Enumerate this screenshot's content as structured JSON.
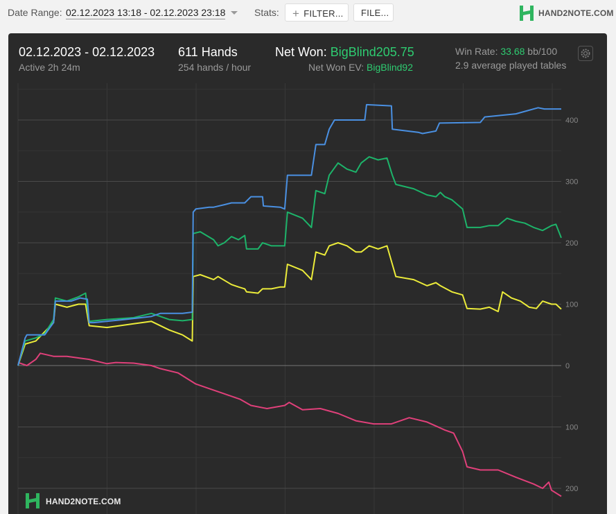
{
  "toolbar": {
    "date_range_label": "Date Range:",
    "date_range_value": "02.12.2023 13:18 - 02.12.2023 23:18",
    "stats_label": "Stats:",
    "filter_label": "FILTER...",
    "file_label": "FILE...",
    "brand": "HAND2NOTE.COM"
  },
  "summary": {
    "date": "02.12.2023 - 02.12.2023",
    "active": "Active 2h 24m",
    "hands": "611 Hands",
    "hands_per_hour": "254 hands / hour",
    "net_won_label": "Net Won:",
    "net_won_value": "BigBlind205.75",
    "net_won_ev_label": "Net Won  EV:",
    "net_won_ev_value": "BigBlind92",
    "win_rate_label": "Win Rate:",
    "win_rate_value": "33.68",
    "win_rate_unit": "bb/100",
    "avg_tables": "2.9 average played tables"
  },
  "watermark": "HAND2NOTE.COM",
  "colors": {
    "net_won": "#4a90e2",
    "showdown": "#1db46a",
    "net_won_ev": "#ecec3a",
    "non_showdown": "#e0407a",
    "accent": "#2ecc71"
  },
  "chart_data": {
    "type": "line",
    "xlim": [
      0,
      611
    ],
    "ylim": [
      -210,
      430
    ],
    "y_ticks": [
      400,
      300,
      200,
      100,
      0,
      -100,
      -200
    ],
    "y_tick_labels": [
      "400",
      "300",
      "200",
      "100",
      "0",
      "100",
      "200"
    ],
    "grid": true,
    "series": [
      {
        "key": "blue",
        "color": "#4a90e2",
        "points": [
          [
            0,
            0
          ],
          [
            8,
            45
          ],
          [
            10,
            50
          ],
          [
            30,
            50
          ],
          [
            40,
            70
          ],
          [
            42,
            105
          ],
          [
            60,
            105
          ],
          [
            70,
            110
          ],
          [
            78,
            108
          ],
          [
            80,
            70
          ],
          [
            85,
            70
          ],
          [
            120,
            75
          ],
          [
            150,
            80
          ],
          [
            160,
            85
          ],
          [
            185,
            85
          ],
          [
            196,
            87
          ],
          [
            197,
            250
          ],
          [
            200,
            255
          ],
          [
            215,
            258
          ],
          [
            220,
            258
          ],
          [
            232,
            262
          ],
          [
            240,
            265
          ],
          [
            255,
            265
          ],
          [
            262,
            275
          ],
          [
            275,
            275
          ],
          [
            276,
            260
          ],
          [
            295,
            258
          ],
          [
            300,
            255
          ],
          [
            303,
            310
          ],
          [
            330,
            310
          ],
          [
            335,
            360
          ],
          [
            345,
            360
          ],
          [
            350,
            385
          ],
          [
            356,
            400
          ],
          [
            390,
            400
          ],
          [
            392,
            425
          ],
          [
            420,
            423
          ],
          [
            421,
            385
          ],
          [
            450,
            380
          ],
          [
            455,
            378
          ],
          [
            470,
            382
          ],
          [
            474,
            395
          ],
          [
            520,
            396
          ],
          [
            525,
            405
          ],
          [
            560,
            410
          ],
          [
            585,
            420
          ],
          [
            592,
            418
          ],
          [
            611,
            418
          ]
        ]
      },
      {
        "key": "green",
        "color": "#1db46a",
        "points": [
          [
            0,
            0
          ],
          [
            8,
            40
          ],
          [
            20,
            45
          ],
          [
            30,
            52
          ],
          [
            40,
            75
          ],
          [
            42,
            110
          ],
          [
            55,
            105
          ],
          [
            68,
            112
          ],
          [
            76,
            118
          ],
          [
            80,
            72
          ],
          [
            100,
            75
          ],
          [
            130,
            78
          ],
          [
            150,
            85
          ],
          [
            170,
            75
          ],
          [
            185,
            73
          ],
          [
            196,
            75
          ],
          [
            197,
            215
          ],
          [
            205,
            218
          ],
          [
            220,
            205
          ],
          [
            225,
            195
          ],
          [
            232,
            200
          ],
          [
            240,
            210
          ],
          [
            248,
            205
          ],
          [
            255,
            212
          ],
          [
            257,
            190
          ],
          [
            270,
            190
          ],
          [
            275,
            200
          ],
          [
            285,
            195
          ],
          [
            295,
            195
          ],
          [
            300,
            195
          ],
          [
            303,
            250
          ],
          [
            320,
            240
          ],
          [
            330,
            225
          ],
          [
            335,
            285
          ],
          [
            345,
            280
          ],
          [
            350,
            310
          ],
          [
            360,
            330
          ],
          [
            370,
            320
          ],
          [
            380,
            315
          ],
          [
            386,
            330
          ],
          [
            395,
            340
          ],
          [
            405,
            335
          ],
          [
            415,
            338
          ],
          [
            421,
            310
          ],
          [
            425,
            295
          ],
          [
            445,
            288
          ],
          [
            460,
            278
          ],
          [
            470,
            275
          ],
          [
            475,
            282
          ],
          [
            480,
            275
          ],
          [
            488,
            270
          ],
          [
            500,
            255
          ],
          [
            505,
            225
          ],
          [
            520,
            225
          ],
          [
            530,
            228
          ],
          [
            540,
            228
          ],
          [
            550,
            240
          ],
          [
            560,
            235
          ],
          [
            570,
            232
          ],
          [
            580,
            225
          ],
          [
            590,
            220
          ],
          [
            600,
            228
          ],
          [
            605,
            230
          ],
          [
            611,
            208
          ]
        ]
      },
      {
        "key": "yellow",
        "color": "#ecec3a",
        "points": [
          [
            0,
            0
          ],
          [
            8,
            35
          ],
          [
            20,
            40
          ],
          [
            30,
            55
          ],
          [
            40,
            70
          ],
          [
            42,
            100
          ],
          [
            55,
            95
          ],
          [
            68,
            100
          ],
          [
            76,
            100
          ],
          [
            80,
            65
          ],
          [
            100,
            62
          ],
          [
            130,
            68
          ],
          [
            150,
            72
          ],
          [
            170,
            58
          ],
          [
            185,
            50
          ],
          [
            196,
            40
          ],
          [
            197,
            145
          ],
          [
            205,
            148
          ],
          [
            220,
            140
          ],
          [
            225,
            145
          ],
          [
            240,
            132
          ],
          [
            248,
            128
          ],
          [
            255,
            125
          ],
          [
            257,
            120
          ],
          [
            270,
            118
          ],
          [
            275,
            125
          ],
          [
            285,
            125
          ],
          [
            295,
            128
          ],
          [
            300,
            128
          ],
          [
            303,
            165
          ],
          [
            320,
            155
          ],
          [
            330,
            140
          ],
          [
            335,
            185
          ],
          [
            345,
            180
          ],
          [
            350,
            195
          ],
          [
            360,
            200
          ],
          [
            370,
            195
          ],
          [
            380,
            185
          ],
          [
            386,
            185
          ],
          [
            395,
            195
          ],
          [
            405,
            190
          ],
          [
            415,
            195
          ],
          [
            421,
            165
          ],
          [
            425,
            145
          ],
          [
            445,
            140
          ],
          [
            460,
            130
          ],
          [
            470,
            135
          ],
          [
            475,
            130
          ],
          [
            488,
            120
          ],
          [
            500,
            115
          ],
          [
            505,
            93
          ],
          [
            520,
            92
          ],
          [
            530,
            95
          ],
          [
            540,
            88
          ],
          [
            545,
            120
          ],
          [
            555,
            110
          ],
          [
            565,
            105
          ],
          [
            575,
            95
          ],
          [
            583,
            93
          ],
          [
            590,
            105
          ],
          [
            600,
            100
          ],
          [
            605,
            100
          ],
          [
            611,
            92
          ]
        ]
      },
      {
        "key": "pink",
        "color": "#e0407a",
        "points": [
          [
            0,
            5
          ],
          [
            10,
            0
          ],
          [
            20,
            10
          ],
          [
            25,
            20
          ],
          [
            40,
            15
          ],
          [
            55,
            15
          ],
          [
            70,
            12
          ],
          [
            80,
            10
          ],
          [
            100,
            3
          ],
          [
            110,
            5
          ],
          [
            130,
            4
          ],
          [
            150,
            0
          ],
          [
            160,
            -5
          ],
          [
            180,
            -12
          ],
          [
            200,
            -30
          ],
          [
            220,
            -40
          ],
          [
            230,
            -45
          ],
          [
            250,
            -55
          ],
          [
            262,
            -65
          ],
          [
            280,
            -70
          ],
          [
            300,
            -65
          ],
          [
            305,
            -60
          ],
          [
            320,
            -72
          ],
          [
            340,
            -70
          ],
          [
            360,
            -78
          ],
          [
            380,
            -90
          ],
          [
            400,
            -95
          ],
          [
            420,
            -95
          ],
          [
            440,
            -85
          ],
          [
            460,
            -92
          ],
          [
            480,
            -105
          ],
          [
            490,
            -110
          ],
          [
            500,
            -140
          ],
          [
            505,
            -165
          ],
          [
            520,
            -170
          ],
          [
            540,
            -170
          ],
          [
            560,
            -182
          ],
          [
            580,
            -193
          ],
          [
            590,
            -200
          ],
          [
            597,
            -190
          ],
          [
            600,
            -203
          ],
          [
            611,
            -213
          ]
        ]
      }
    ]
  }
}
